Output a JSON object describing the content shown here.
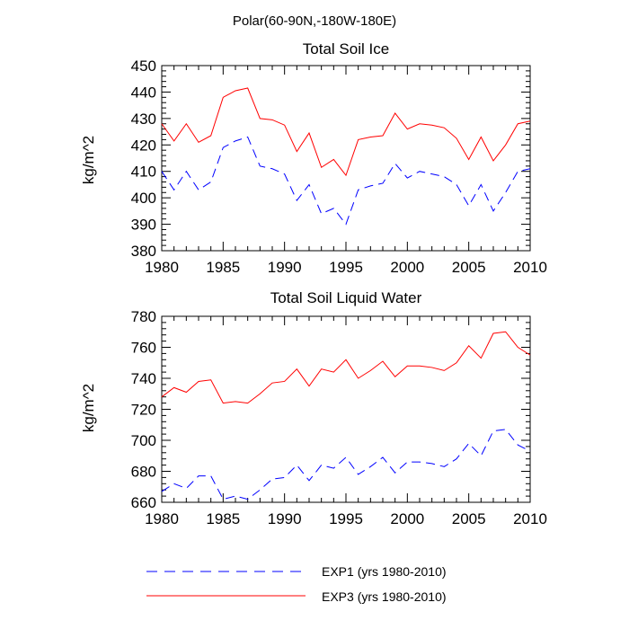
{
  "figure": {
    "title": "Polar(60-90N,-180W-180E)"
  },
  "legend": [
    {
      "label": "EXP1 (yrs 1980-2010)",
      "color": "#0000ff",
      "dash": "dashed"
    },
    {
      "label": "EXP3 (yrs 1980-2010)",
      "color": "#ff0000",
      "dash": "solid"
    }
  ],
  "chart_data": [
    {
      "type": "line",
      "title": "Total Soil Ice",
      "xlabel": "",
      "ylabel": "kg/m^2",
      "xlim": [
        1980,
        2010
      ],
      "ylim": [
        380,
        450
      ],
      "x_ticks": [
        1980,
        1985,
        1990,
        1995,
        2000,
        2005,
        2010
      ],
      "y_ticks": [
        380,
        390,
        400,
        410,
        420,
        430,
        440,
        450
      ],
      "x": [
        1980,
        1981,
        1982,
        1983,
        1984,
        1985,
        1986,
        1987,
        1988,
        1989,
        1990,
        1991,
        1992,
        1993,
        1994,
        1995,
        1996,
        1997,
        1998,
        1999,
        2000,
        2001,
        2002,
        2003,
        2004,
        2005,
        2006,
        2007,
        2008,
        2009,
        2010
      ],
      "series": [
        {
          "name": "EXP1 (yrs 1980-2010)",
          "color": "#0000ff",
          "dash": "dashed",
          "values": [
            410,
            403,
            410,
            403,
            406,
            419,
            421.5,
            423,
            412,
            411,
            409,
            399,
            405,
            394,
            396,
            390,
            403,
            404.5,
            405.5,
            413,
            407.5,
            410,
            409,
            408,
            405,
            397,
            405,
            395,
            402,
            410,
            411
          ]
        },
        {
          "name": "EXP3 (yrs 1980-2010)",
          "color": "#ff0000",
          "dash": "solid",
          "values": [
            428,
            421.5,
            428,
            421,
            423.5,
            438,
            440.5,
            441.5,
            430,
            429.5,
            427.5,
            417.5,
            424.5,
            411.5,
            414.5,
            408.5,
            422,
            423,
            423.5,
            432,
            426,
            428,
            427.5,
            426.5,
            422.5,
            414.5,
            423,
            414,
            420,
            428,
            429
          ]
        }
      ]
    },
    {
      "type": "line",
      "title": "Total Soil Liquid Water",
      "xlabel": "",
      "ylabel": "kg/m^2",
      "xlim": [
        1980,
        2010
      ],
      "ylim": [
        660,
        780
      ],
      "x_ticks": [
        1980,
        1985,
        1990,
        1995,
        2000,
        2005,
        2010
      ],
      "y_ticks": [
        660,
        680,
        700,
        720,
        740,
        760,
        780
      ],
      "x": [
        1980,
        1981,
        1982,
        1983,
        1984,
        1985,
        1986,
        1987,
        1988,
        1989,
        1990,
        1991,
        1992,
        1993,
        1994,
        1995,
        1996,
        1997,
        1998,
        1999,
        2000,
        2001,
        2002,
        2003,
        2004,
        2005,
        2006,
        2007,
        2008,
        2009,
        2010
      ],
      "series": [
        {
          "name": "EXP1 (yrs 1980-2010)",
          "color": "#0000ff",
          "dash": "dashed",
          "values": [
            667,
            672,
            669,
            677,
            677,
            662,
            664,
            662,
            668,
            675,
            676,
            684,
            674,
            684,
            682,
            689,
            678,
            683,
            689,
            679,
            686,
            686,
            685,
            683,
            688,
            698,
            690,
            706,
            707,
            697,
            693
          ]
        },
        {
          "name": "EXP3 (yrs 1980-2010)",
          "color": "#ff0000",
          "dash": "solid",
          "values": [
            728,
            734,
            731,
            738,
            739,
            724,
            725,
            724,
            730,
            737,
            738,
            746,
            735,
            746,
            744,
            752,
            740,
            745,
            751,
            741,
            748,
            748,
            747,
            745,
            750,
            761,
            753,
            769,
            770,
            760,
            755
          ]
        }
      ]
    }
  ]
}
